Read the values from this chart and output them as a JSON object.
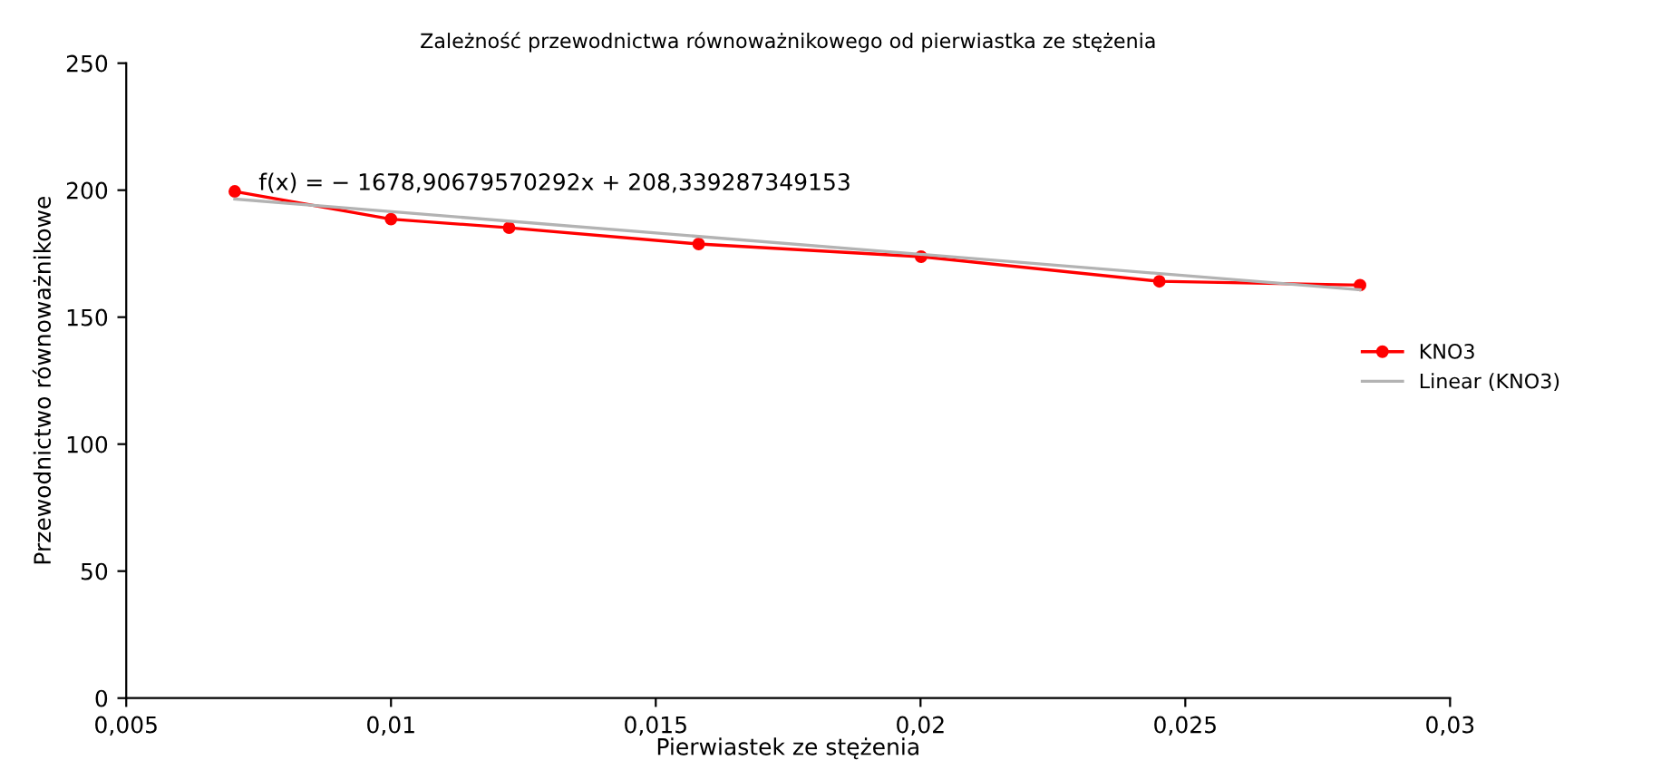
{
  "chart_data": {
    "type": "line",
    "title": "Zależność przewodnictwa równoważnikowego od pierwiastka ze stężenia",
    "xlabel": "Pierwiastek ze stężenia",
    "ylabel": "Przewodnictwo równoważnikowe",
    "x": [
      0.00705,
      0.01,
      0.01223,
      0.01581,
      0.02001,
      0.02451,
      0.0283
    ],
    "series": [
      {
        "name": "KNO3",
        "color": "#ff0000",
        "values": [
          199.5,
          188.6,
          185.2,
          178.8,
          173.8,
          164.1,
          162.6
        ],
        "marker": "circle"
      },
      {
        "name": "Linear (KNO3)",
        "color": "#b3b3b3",
        "x": [
          0.00705,
          0.0283
        ],
        "values": [
          196.5,
          160.8
        ],
        "marker": "none"
      }
    ],
    "annotations": [
      "f(x) = − 1678,90679570292x + 208,339287349153"
    ],
    "xlim": [
      0.005,
      0.03
    ],
    "xticks": [
      {
        "value": 0.005,
        "label": "0,005"
      },
      {
        "value": 0.01,
        "label": "0,01"
      },
      {
        "value": 0.015,
        "label": "0,015"
      },
      {
        "value": 0.02,
        "label": "0,02"
      },
      {
        "value": 0.025,
        "label": "0,025"
      },
      {
        "value": 0.03,
        "label": "0,03"
      }
    ],
    "ylim": [
      0,
      250
    ],
    "yticks": [
      0,
      50,
      100,
      150,
      200,
      250
    ],
    "grid": false,
    "legend": "right"
  }
}
